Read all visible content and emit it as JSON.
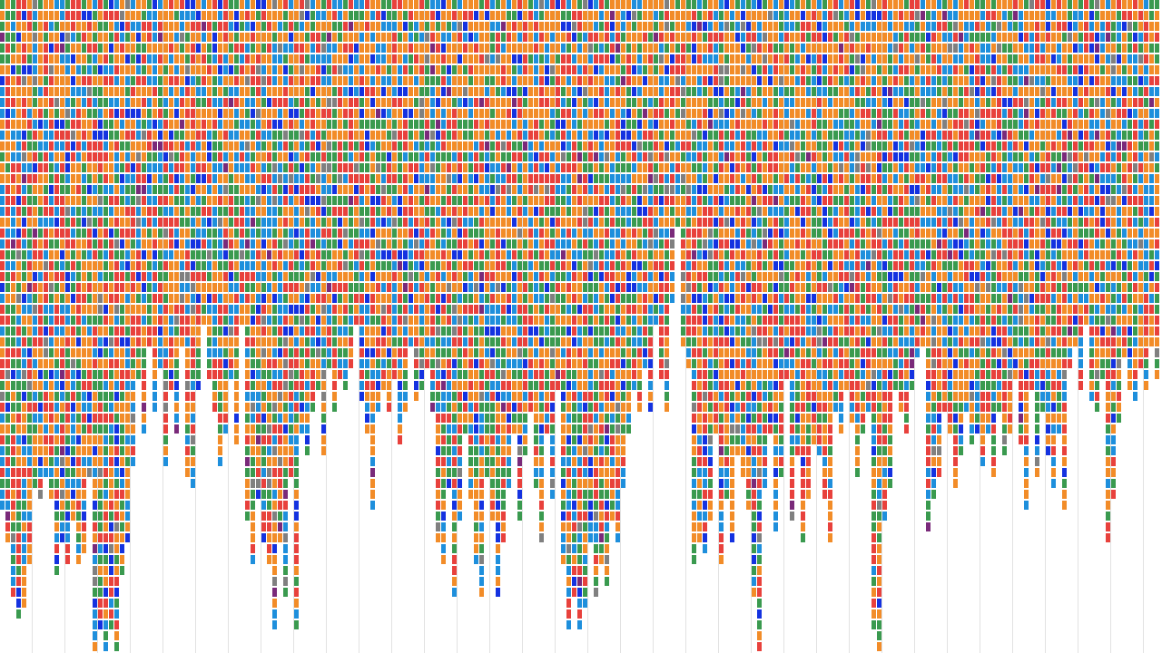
{
  "grid": {
    "palette": [
      "#f28c28",
      "#e8413c",
      "#3a9a4f",
      "#1e8fdc",
      "#1432e0",
      "#808080",
      "#7a2a7a"
    ],
    "columns": [
      47,
      50,
      55,
      57,
      56,
      52,
      45,
      46,
      44,
      46,
      53,
      50,
      52,
      48,
      52,
      51,
      44,
      60,
      58,
      60,
      58,
      60,
      53,
      50,
      43,
      35,
      40,
      32,
      38,
      34,
      43,
      36,
      40,
      32,
      44,
      45,
      36,
      30,
      35,
      38,
      43,
      40,
      35,
      41,
      30,
      48,
      52,
      46,
      50,
      52,
      58,
      50,
      55,
      44,
      58,
      40,
      42,
      38,
      36,
      42,
      34,
      38,
      35,
      36,
      34,
      30,
      37,
      40,
      47,
      38,
      36,
      38,
      35,
      41,
      38,
      32,
      37,
      36,
      34,
      38,
      50,
      52,
      45,
      55,
      48,
      40,
      46,
      52,
      55,
      44,
      48,
      55,
      50,
      45,
      40,
      48,
      42,
      38,
      45,
      50,
      40,
      46,
      36,
      52,
      58,
      55,
      58,
      56,
      50,
      55,
      52,
      54,
      48,
      50,
      45,
      40,
      36,
      38,
      34,
      38,
      30,
      35,
      38,
      28,
      21,
      32,
      34,
      52,
      50,
      51,
      48,
      40,
      52,
      46,
      50,
      42,
      44,
      47,
      55,
      60,
      45,
      40,
      49,
      44,
      35,
      48,
      42,
      50,
      46,
      41,
      42,
      46,
      50,
      38,
      40,
      36,
      39,
      44,
      40,
      38,
      58,
      60,
      48,
      45,
      36,
      38,
      40,
      36,
      33,
      32,
      49,
      46,
      44,
      38,
      40,
      45,
      42,
      38,
      41,
      40,
      43,
      40,
      44,
      38,
      42,
      40,
      35,
      41,
      47,
      36,
      44,
      38,
      42,
      45,
      40,
      47,
      34,
      32,
      36,
      30,
      37,
      38,
      35,
      50,
      46,
      39,
      33,
      36,
      37,
      34,
      36,
      32,
      35
    ]
  }
}
